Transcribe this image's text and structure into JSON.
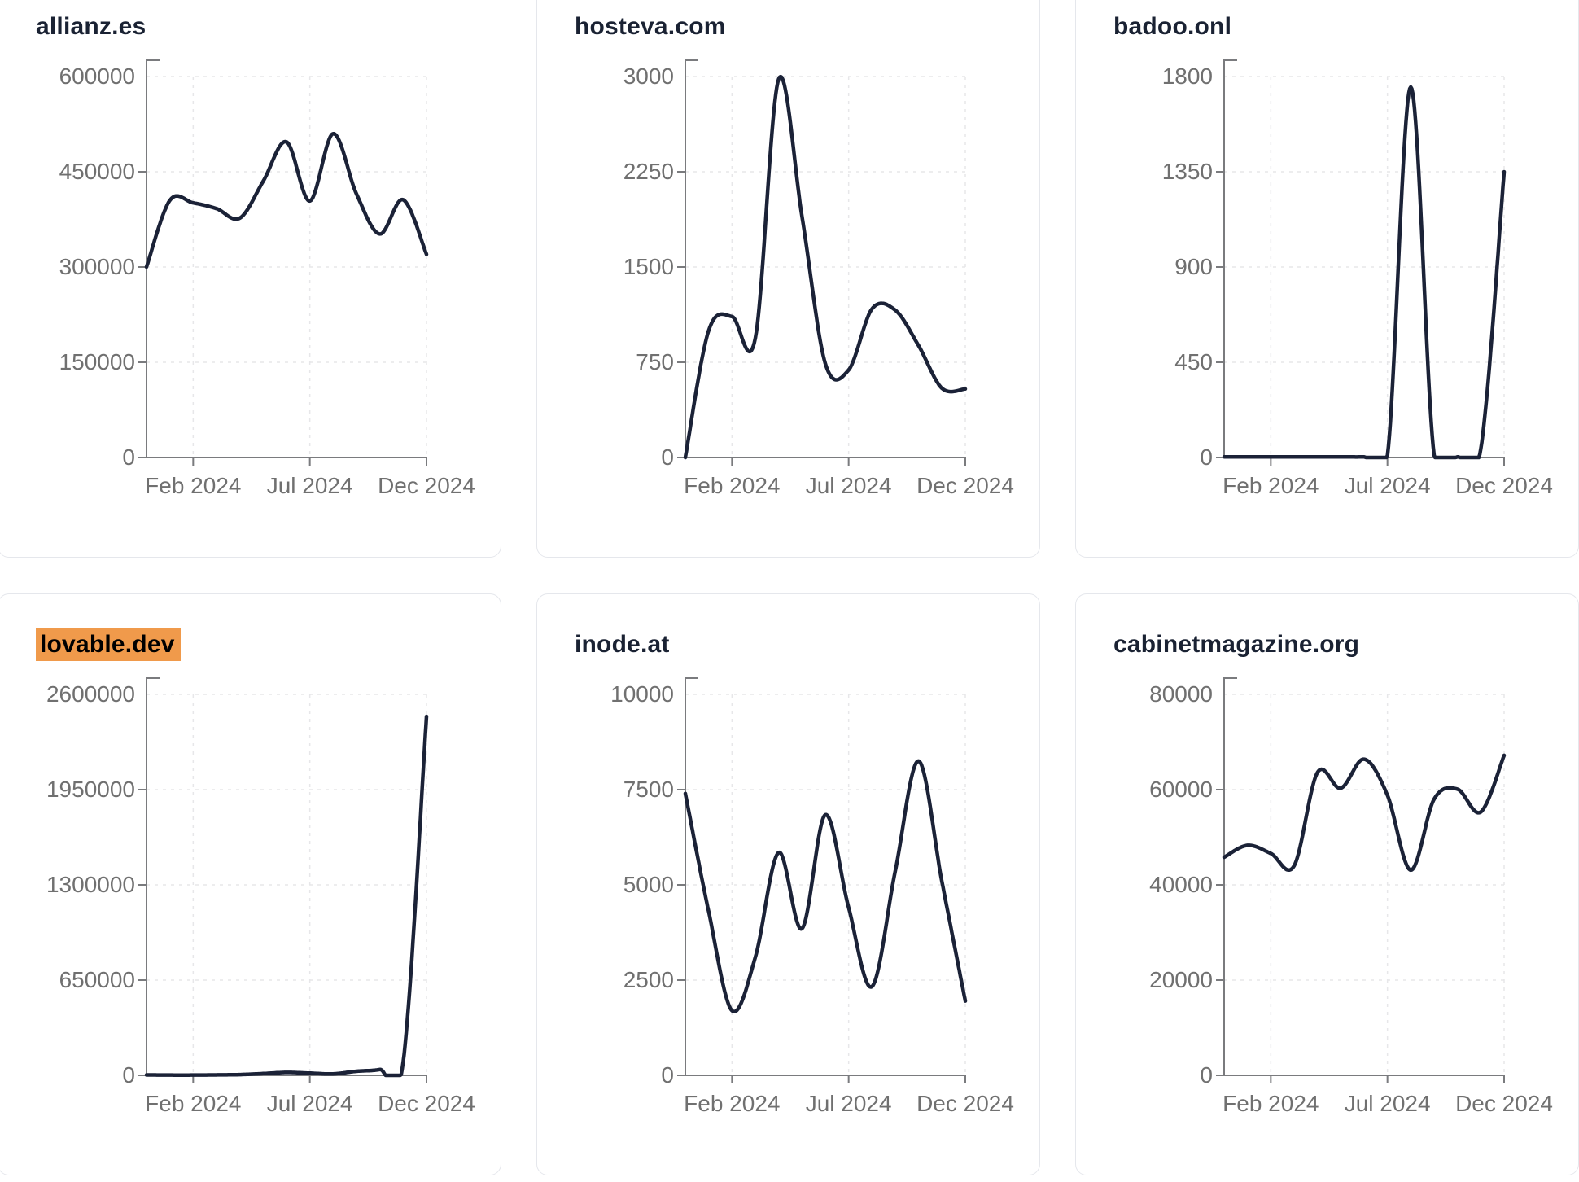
{
  "page": {
    "background": "#ffffff"
  },
  "style": {
    "line_color": "#1b2237",
    "title_color": "#1a2233",
    "axis_color": "#7a7b7e",
    "grid_color": "#e7e7e9",
    "tick_label_color": "#707070",
    "card_border": "#e5e7ec",
    "highlight_color": "#f09a4b",
    "highlight_text_color": "#000000"
  },
  "chart_data": [
    {
      "type": "line",
      "title": "allianz.es",
      "highlighted": false,
      "x_tick_labels": [
        "Feb 2024",
        "Jul 2024",
        "Dec 2024"
      ],
      "x_tick_indices": [
        2,
        7,
        12
      ],
      "yticks": [
        0,
        150000,
        300000,
        450000,
        600000
      ],
      "ylim": [
        0,
        600000
      ],
      "grid": "dashed",
      "values": [
        300000,
        405000,
        401000,
        392000,
        377000,
        435000,
        497000,
        404000,
        510000,
        415000,
        352000,
        406000,
        320000
      ]
    },
    {
      "type": "line",
      "title": "hosteva.com",
      "highlighted": false,
      "x_tick_labels": [
        "Feb 2024",
        "Jul 2024",
        "Dec 2024"
      ],
      "x_tick_indices": [
        2,
        7,
        12
      ],
      "yticks": [
        0,
        750,
        1500,
        2250,
        3000
      ],
      "ylim": [
        0,
        3000
      ],
      "grid": "dashed",
      "values": [
        0,
        1000,
        1110,
        940,
        2980,
        1900,
        740,
        690,
        1170,
        1160,
        880,
        545,
        540
      ]
    },
    {
      "type": "line",
      "title": "badoo.onl",
      "highlighted": false,
      "x_tick_labels": [
        "Feb 2024",
        "Jul 2024",
        "Dec 2024"
      ],
      "x_tick_indices": [
        2,
        7,
        12
      ],
      "yticks": [
        0,
        450,
        900,
        1350,
        1800
      ],
      "ylim": [
        0,
        1800
      ],
      "grid": "dashed",
      "values": [
        3,
        3,
        3,
        3,
        3,
        3,
        3,
        10,
        1750,
        10,
        3,
        40,
        1350
      ]
    },
    {
      "type": "line",
      "title": "lovable.dev",
      "highlighted": true,
      "x_tick_labels": [
        "Feb 2024",
        "Jul 2024",
        "Dec 2024"
      ],
      "x_tick_indices": [
        2,
        7,
        12
      ],
      "yticks": [
        0,
        650000,
        1300000,
        1950000,
        2600000
      ],
      "ylim": [
        0,
        2600000
      ],
      "grid": "dashed",
      "values": [
        3000,
        2000,
        2000,
        3000,
        5000,
        12000,
        20000,
        15000,
        10000,
        28000,
        40000,
        90000,
        2450000
      ]
    },
    {
      "type": "line",
      "title": "inode.at",
      "highlighted": false,
      "x_tick_labels": [
        "Feb 2024",
        "Jul 2024",
        "Dec 2024"
      ],
      "x_tick_indices": [
        2,
        7,
        12
      ],
      "yticks": [
        0,
        2500,
        5000,
        7500,
        10000
      ],
      "ylim": [
        0,
        10000
      ],
      "grid": "dashed",
      "values": [
        7400,
        4300,
        1700,
        3100,
        5850,
        3850,
        6840,
        4400,
        2330,
        5370,
        8250,
        5080,
        1950
      ]
    },
    {
      "type": "line",
      "title": "cabinetmagazine.org",
      "highlighted": false,
      "x_tick_labels": [
        "Feb 2024",
        "Jul 2024",
        "Dec 2024"
      ],
      "x_tick_indices": [
        2,
        7,
        12
      ],
      "yticks": [
        0,
        20000,
        40000,
        60000,
        80000
      ],
      "ylim": [
        0,
        80000
      ],
      "grid": "dashed",
      "values": [
        45800,
        48300,
        46600,
        44000,
        63600,
        60300,
        66400,
        58800,
        43100,
        58000,
        60100,
        55300,
        67200
      ]
    }
  ]
}
